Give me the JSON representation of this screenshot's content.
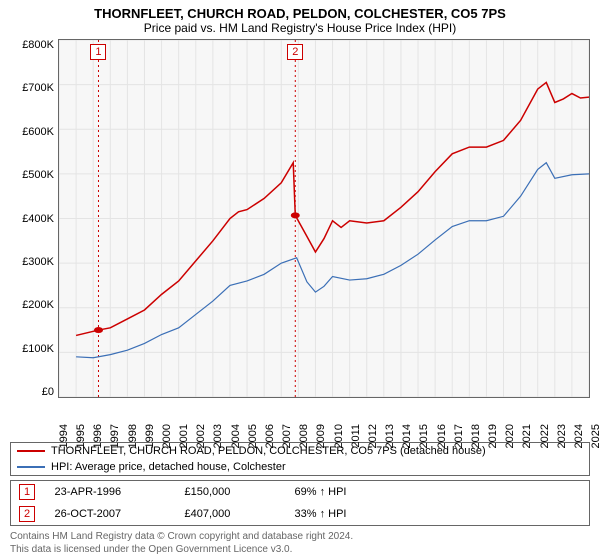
{
  "title": "THORNFLEET, CHURCH ROAD, PELDON, COLCHESTER, CO5 7PS",
  "subtitle": "Price paid vs. HM Land Registry's House Price Index (HPI)",
  "chart": {
    "type": "line",
    "background_color": "#f7f7f7",
    "border_color": "#666666",
    "grid_color": "#e4e4e4",
    "font_family": "Arial",
    "title_fontsize": 13,
    "subtitle_fontsize": 12,
    "axis_fontsize": 11,
    "ylim": [
      0,
      800000
    ],
    "ytick_step": 100000,
    "yticks": [
      "£0",
      "£100K",
      "£200K",
      "£300K",
      "£400K",
      "£500K",
      "£600K",
      "£700K",
      "£800K"
    ],
    "xlim": [
      1994,
      2025
    ],
    "xtick_step": 1,
    "xticks": [
      1994,
      1995,
      1996,
      1997,
      1998,
      1999,
      2000,
      2001,
      2002,
      2003,
      2004,
      2005,
      2006,
      2007,
      2008,
      2009,
      2010,
      2011,
      2012,
      2013,
      2014,
      2015,
      2016,
      2017,
      2018,
      2019,
      2020,
      2021,
      2022,
      2023,
      2024,
      2025
    ],
    "xtick_rotation": -90,
    "series": [
      {
        "name": "THORNFLEET, CHURCH ROAD, PELDON, COLCHESTER, CO5 7PS (detached house)",
        "color": "#cc0000",
        "line_width": 1.5,
        "data": [
          [
            1995.0,
            138000
          ],
          [
            1996.31,
            150000
          ],
          [
            1997.0,
            155000
          ],
          [
            1998.0,
            175000
          ],
          [
            1999.0,
            195000
          ],
          [
            2000.0,
            230000
          ],
          [
            2001.0,
            260000
          ],
          [
            2002.0,
            305000
          ],
          [
            2003.0,
            350000
          ],
          [
            2004.0,
            400000
          ],
          [
            2004.5,
            415000
          ],
          [
            2005.0,
            420000
          ],
          [
            2006.0,
            445000
          ],
          [
            2007.0,
            480000
          ],
          [
            2007.7,
            525000
          ],
          [
            2007.82,
            407000
          ],
          [
            2008.5,
            360000
          ],
          [
            2009.0,
            325000
          ],
          [
            2009.5,
            355000
          ],
          [
            2010.0,
            395000
          ],
          [
            2010.5,
            380000
          ],
          [
            2011.0,
            395000
          ],
          [
            2012.0,
            390000
          ],
          [
            2013.0,
            395000
          ],
          [
            2014.0,
            425000
          ],
          [
            2015.0,
            460000
          ],
          [
            2016.0,
            505000
          ],
          [
            2017.0,
            545000
          ],
          [
            2018.0,
            560000
          ],
          [
            2019.0,
            560000
          ],
          [
            2020.0,
            575000
          ],
          [
            2021.0,
            620000
          ],
          [
            2022.0,
            690000
          ],
          [
            2022.5,
            705000
          ],
          [
            2023.0,
            660000
          ],
          [
            2023.5,
            668000
          ],
          [
            2024.0,
            680000
          ],
          [
            2024.5,
            670000
          ],
          [
            2025.0,
            672000
          ]
        ]
      },
      {
        "name": "HPI: Average price, detached house, Colchester",
        "color": "#3b6fb6",
        "line_width": 1.2,
        "data": [
          [
            1995.0,
            90000
          ],
          [
            1996.0,
            88000
          ],
          [
            1997.0,
            95000
          ],
          [
            1998.0,
            105000
          ],
          [
            1999.0,
            120000
          ],
          [
            2000.0,
            140000
          ],
          [
            2001.0,
            155000
          ],
          [
            2002.0,
            185000
          ],
          [
            2003.0,
            215000
          ],
          [
            2004.0,
            250000
          ],
          [
            2005.0,
            260000
          ],
          [
            2006.0,
            275000
          ],
          [
            2007.0,
            300000
          ],
          [
            2007.9,
            312000
          ],
          [
            2008.5,
            258000
          ],
          [
            2009.0,
            235000
          ],
          [
            2009.5,
            248000
          ],
          [
            2010.0,
            270000
          ],
          [
            2011.0,
            262000
          ],
          [
            2012.0,
            265000
          ],
          [
            2013.0,
            275000
          ],
          [
            2014.0,
            295000
          ],
          [
            2015.0,
            320000
          ],
          [
            2016.0,
            352000
          ],
          [
            2017.0,
            382000
          ],
          [
            2018.0,
            395000
          ],
          [
            2019.0,
            395000
          ],
          [
            2020.0,
            405000
          ],
          [
            2021.0,
            450000
          ],
          [
            2022.0,
            510000
          ],
          [
            2022.5,
            525000
          ],
          [
            2023.0,
            490000
          ],
          [
            2024.0,
            498000
          ],
          [
            2025.0,
            500000
          ]
        ]
      }
    ],
    "sale_markers": [
      {
        "n": 1,
        "year": 1996.31,
        "price": 150000,
        "vline_top_y": 800000
      },
      {
        "n": 2,
        "year": 2007.82,
        "price": 407000,
        "vline_top_y": 800000
      }
    ],
    "vline_color": "#cc0000",
    "vline_dash": "2,3",
    "point_marker": {
      "shape": "circle",
      "size": 4.5,
      "fill": "#cc0000",
      "stroke": "#cc0000"
    }
  },
  "legend": {
    "series0": "THORNFLEET, CHURCH ROAD, PELDON, COLCHESTER, CO5 7PS (detached house)",
    "series1": "HPI: Average price, detached house, Colchester"
  },
  "sales": [
    {
      "n": "1",
      "date": "23-APR-1996",
      "price": "£150,000",
      "vs_hpi": "69% ↑ HPI"
    },
    {
      "n": "2",
      "date": "26-OCT-2007",
      "price": "£407,000",
      "vs_hpi": "33% ↑ HPI"
    }
  ],
  "footnote_line1": "Contains HM Land Registry data © Crown copyright and database right 2024.",
  "footnote_line2": "This data is licensed under the Open Government Licence v3.0."
}
